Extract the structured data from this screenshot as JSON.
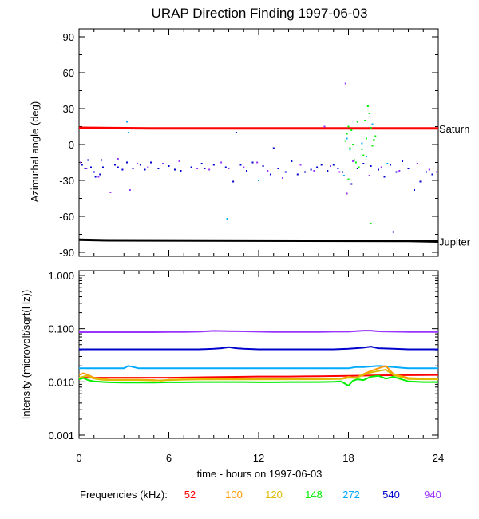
{
  "chart_data": [
    {
      "type": "scatter",
      "title": "URAP Direction Finding  1997-06-03",
      "ylabel": "Azimuthal angle (deg)",
      "xlim": [
        0,
        24
      ],
      "ylim": [
        -90,
        90
      ],
      "yticks": [
        "90",
        "60",
        "30",
        "0",
        "-30",
        "-60",
        "-90"
      ],
      "grid": false,
      "reference_lines": [
        {
          "label": "Saturn",
          "color": "#ff0000",
          "x": [
            0,
            4.7,
            24
          ],
          "y": [
            14,
            13.5,
            13.5
          ]
        },
        {
          "label": "Jupiter",
          "color": "#000000",
          "x": [
            0,
            2,
            22,
            24
          ],
          "y": [
            -79.5,
            -80,
            -80.5,
            -81
          ]
        }
      ],
      "series": [
        {
          "freq": "540",
          "color": "#0000cc",
          "points": [
            [
              0.2,
              -17
            ],
            [
              0.4,
              -20
            ],
            [
              0.6,
              -13
            ],
            [
              0.8,
              -19
            ],
            [
              1.0,
              -23
            ],
            [
              1.1,
              -27
            ],
            [
              1.4,
              -25
            ],
            [
              1.5,
              -13
            ],
            [
              1.6,
              -19
            ],
            [
              2.4,
              -17
            ],
            [
              2.6,
              -19
            ],
            [
              2.9,
              -21
            ],
            [
              3.2,
              -15
            ],
            [
              3.6,
              -20
            ],
            [
              4.1,
              -17
            ],
            [
              4.4,
              -21
            ],
            [
              4.8,
              -15
            ],
            [
              5.3,
              -20
            ],
            [
              6.0,
              -18
            ],
            [
              6.4,
              -21
            ],
            [
              6.8,
              -22
            ],
            [
              7.5,
              -19
            ],
            [
              8.2,
              -16
            ],
            [
              8.4,
              -20
            ],
            [
              9.0,
              -17
            ],
            [
              9.8,
              -19
            ],
            [
              10.3,
              -31
            ],
            [
              10.5,
              10
            ],
            [
              10.8,
              -17
            ],
            [
              11.2,
              -22
            ],
            [
              11.6,
              -15
            ],
            [
              12.3,
              -18
            ],
            [
              12.8,
              -25
            ],
            [
              13.3,
              -20
            ],
            [
              13.8,
              -23
            ],
            [
              14.2,
              -14
            ],
            [
              14.6,
              -25
            ],
            [
              15.1,
              -23
            ],
            [
              15.5,
              -21
            ],
            [
              15.9,
              -19
            ],
            [
              16.2,
              -17
            ],
            [
              16.6,
              -22
            ],
            [
              17.0,
              -17
            ],
            [
              17.3,
              -20
            ],
            [
              17.6,
              -23
            ],
            [
              18.6,
              -20
            ],
            [
              19.0,
              -16
            ],
            [
              19.5,
              -18
            ],
            [
              20.0,
              -21
            ],
            [
              20.4,
              -27
            ],
            [
              20.8,
              -17
            ],
            [
              21.2,
              -23
            ],
            [
              21.6,
              -14
            ],
            [
              22.0,
              -20
            ],
            [
              22.4,
              -38
            ],
            [
              22.8,
              -31
            ],
            [
              23.2,
              -23
            ],
            [
              23.6,
              -25
            ],
            [
              21.0,
              -73
            ],
            [
              13.0,
              -3
            ],
            [
              18.2,
              -33
            ]
          ]
        },
        {
          "freq": "940",
          "color": "#9933ff",
          "points": [
            [
              0.1,
              -15
            ],
            [
              0.5,
              -20
            ],
            [
              1.3,
              -27
            ],
            [
              2.1,
              -40
            ],
            [
              2.6,
              -12
            ],
            [
              3.4,
              -38
            ],
            [
              3.9,
              -16
            ],
            [
              4.6,
              -19
            ],
            [
              5.6,
              -16
            ],
            [
              6.7,
              -14
            ],
            [
              7.9,
              -20
            ],
            [
              8.7,
              -21
            ],
            [
              9.5,
              -15
            ],
            [
              10.0,
              -20
            ],
            [
              11.0,
              -19
            ],
            [
              11.9,
              -15
            ],
            [
              12.6,
              -22
            ],
            [
              13.6,
              -28
            ],
            [
              14.8,
              -17
            ],
            [
              15.7,
              -22
            ],
            [
              16.8,
              -18
            ],
            [
              17.4,
              -23
            ],
            [
              17.9,
              -41
            ],
            [
              17.8,
              51
            ],
            [
              18.3,
              -14
            ],
            [
              19.4,
              -26
            ],
            [
              20.2,
              -19
            ],
            [
              21.4,
              -22
            ],
            [
              22.6,
              -16
            ],
            [
              23.4,
              -21
            ],
            [
              23.9,
              -23
            ],
            [
              16.4,
              15
            ]
          ]
        },
        {
          "freq": "272",
          "color": "#00aaff",
          "points": [
            [
              3.2,
              19
            ],
            [
              3.3,
              10
            ],
            [
              9.9,
              -62
            ],
            [
              17.9,
              5
            ],
            [
              18.1,
              -4
            ],
            [
              17.7,
              -26
            ],
            [
              18.9,
              1
            ],
            [
              19.2,
              -10
            ],
            [
              12.0,
              -30
            ],
            [
              20.6,
              -16
            ],
            [
              19.6,
              17
            ]
          ]
        },
        {
          "freq": "148",
          "color": "#00ee00",
          "points": [
            [
              17.8,
              3
            ],
            [
              17.9,
              9
            ],
            [
              18.0,
              15
            ],
            [
              18.1,
              -3
            ],
            [
              18.2,
              12
            ],
            [
              18.4,
              -13
            ],
            [
              18.6,
              19
            ],
            [
              18.9,
              -4
            ],
            [
              19.0,
              -9
            ],
            [
              19.2,
              5
            ],
            [
              19.3,
              32
            ],
            [
              19.5,
              14
            ],
            [
              19.6,
              -1
            ],
            [
              19.7,
              4
            ],
            [
              19.8,
              7
            ],
            [
              19.5,
              -66
            ],
            [
              18.5,
              -15
            ],
            [
              18.7,
              -19
            ],
            [
              19.1,
              20
            ],
            [
              18.3,
              0
            ],
            [
              18.0,
              -29
            ],
            [
              19.4,
              26
            ]
          ]
        },
        {
          "freq": "52",
          "color": "#ff0000",
          "points": []
        },
        {
          "freq": "100",
          "color": "#ff9900",
          "points": []
        },
        {
          "freq": "120",
          "color": "#ddbb00",
          "points": []
        }
      ]
    },
    {
      "type": "line",
      "xlabel": "time - hours on 1997-06-03",
      "ylabel": "Intensity (microvolt/sqrt(Hz))",
      "xlim": [
        0,
        24
      ],
      "ylim": [
        0.001,
        1.0
      ],
      "yscale": "log",
      "xticks": [
        "0",
        "6",
        "12",
        "18",
        "24"
      ],
      "yticks": [
        "1.000",
        "0.100",
        "0.010",
        "0.001"
      ],
      "grid": false,
      "series": [
        {
          "freq": "940",
          "color": "#9933ff",
          "x": [
            0,
            1,
            2,
            3,
            4,
            5,
            6,
            7,
            8,
            9,
            10,
            11,
            12,
            13,
            14,
            15,
            16,
            17,
            18,
            18.5,
            19,
            19.5,
            20,
            21,
            22,
            23,
            24
          ],
          "y": [
            0.086,
            0.086,
            0.086,
            0.086,
            0.086,
            0.086,
            0.087,
            0.087,
            0.088,
            0.091,
            0.09,
            0.089,
            0.088,
            0.087,
            0.087,
            0.087,
            0.087,
            0.088,
            0.088,
            0.09,
            0.092,
            0.092,
            0.089,
            0.088,
            0.087,
            0.087,
            0.087
          ]
        },
        {
          "freq": "540",
          "color": "#0000cc",
          "x": [
            0,
            1,
            2,
            3,
            4,
            5,
            6,
            7,
            8,
            9,
            9.5,
            10,
            10.5,
            11,
            12,
            13,
            14,
            15,
            16,
            17,
            18,
            18.5,
            19,
            19.5,
            20,
            21,
            22,
            23,
            24
          ],
          "y": [
            0.041,
            0.041,
            0.041,
            0.041,
            0.041,
            0.041,
            0.041,
            0.041,
            0.041,
            0.042,
            0.043,
            0.045,
            0.043,
            0.042,
            0.041,
            0.041,
            0.041,
            0.041,
            0.041,
            0.041,
            0.042,
            0.043,
            0.044,
            0.046,
            0.043,
            0.042,
            0.041,
            0.041,
            0.041
          ]
        },
        {
          "freq": "272",
          "color": "#00aaff",
          "x": [
            0,
            1,
            2,
            3,
            3.3,
            4,
            5,
            6,
            7,
            8,
            9,
            10,
            11,
            12,
            13,
            14,
            15,
            16,
            17,
            18,
            18.5,
            19,
            20,
            21,
            22,
            23,
            24
          ],
          "y": [
            0.018,
            0.018,
            0.018,
            0.018,
            0.02,
            0.018,
            0.018,
            0.018,
            0.018,
            0.018,
            0.018,
            0.018,
            0.018,
            0.018,
            0.018,
            0.018,
            0.018,
            0.018,
            0.018,
            0.018,
            0.019,
            0.019,
            0.02,
            0.019,
            0.018,
            0.018,
            0.018
          ]
        },
        {
          "freq": "52",
          "color": "#ff0000",
          "x": [
            0,
            2,
            4,
            6,
            8,
            10,
            12,
            14,
            16,
            18,
            20,
            22,
            24
          ],
          "y": [
            0.012,
            0.012,
            0.012,
            0.012,
            0.0122,
            0.0124,
            0.0126,
            0.0126,
            0.0128,
            0.013,
            0.0133,
            0.0134,
            0.0135
          ]
        },
        {
          "freq": "100",
          "color": "#ff9900",
          "x": [
            0,
            0.3,
            0.6,
            1,
            1.5,
            2,
            3,
            4,
            5,
            5.5,
            6,
            7,
            8,
            10,
            12,
            14,
            16,
            17.5,
            18,
            18.5,
            19,
            19.5,
            20,
            20.5,
            21,
            22,
            23,
            24
          ],
          "y": [
            0.0135,
            0.0145,
            0.0135,
            0.012,
            0.0115,
            0.011,
            0.011,
            0.011,
            0.0108,
            0.0105,
            0.011,
            0.0112,
            0.0112,
            0.0113,
            0.0114,
            0.0114,
            0.0115,
            0.0115,
            0.0125,
            0.012,
            0.014,
            0.016,
            0.018,
            0.02,
            0.014,
            0.0118,
            0.0115,
            0.0115
          ]
        },
        {
          "freq": "120",
          "color": "#ddbb00",
          "x": [
            0,
            0.5,
            1,
            1.5,
            2,
            3,
            4,
            5,
            6,
            7,
            8,
            10,
            12,
            14,
            16,
            17.5,
            18,
            18.5,
            19,
            19.5,
            20,
            20.5,
            21,
            22,
            23,
            24
          ],
          "y": [
            0.012,
            0.013,
            0.0115,
            0.011,
            0.0108,
            0.0108,
            0.0108,
            0.0106,
            0.0108,
            0.011,
            0.0111,
            0.0111,
            0.0111,
            0.0112,
            0.0112,
            0.0113,
            0.012,
            0.0118,
            0.0135,
            0.015,
            0.016,
            0.017,
            0.0135,
            0.0113,
            0.0112,
            0.0112
          ]
        },
        {
          "freq": "148",
          "color": "#00ee00",
          "x": [
            0,
            0.3,
            0.6,
            1,
            2,
            3,
            4,
            5,
            6,
            7,
            8,
            9,
            10,
            11,
            12,
            13,
            14,
            15,
            16,
            17,
            17.5,
            18,
            18.3,
            18.6,
            19,
            19.5,
            20,
            20.5,
            21,
            22,
            23,
            24
          ],
          "y": [
            0.0112,
            0.0118,
            0.0108,
            0.0102,
            0.0098,
            0.0097,
            0.0097,
            0.0097,
            0.0098,
            0.0098,
            0.0099,
            0.0099,
            0.0099,
            0.0099,
            0.0098,
            0.0098,
            0.0099,
            0.0099,
            0.0099,
            0.01,
            0.0102,
            0.0085,
            0.0105,
            0.0112,
            0.0108,
            0.0125,
            0.013,
            0.0115,
            0.0125,
            0.0102,
            0.0099,
            0.0099
          ]
        }
      ]
    }
  ],
  "legend": {
    "label": "Frequencies (kHz):",
    "items": [
      {
        "text": "52",
        "color": "#ff0000"
      },
      {
        "text": "100",
        "color": "#ff9900"
      },
      {
        "text": "120",
        "color": "#ddbb00"
      },
      {
        "text": "148",
        "color": "#00ee00"
      },
      {
        "text": "272",
        "color": "#00aaff"
      },
      {
        "text": "540",
        "color": "#0000cc"
      },
      {
        "text": "940",
        "color": "#9933ff"
      }
    ]
  }
}
